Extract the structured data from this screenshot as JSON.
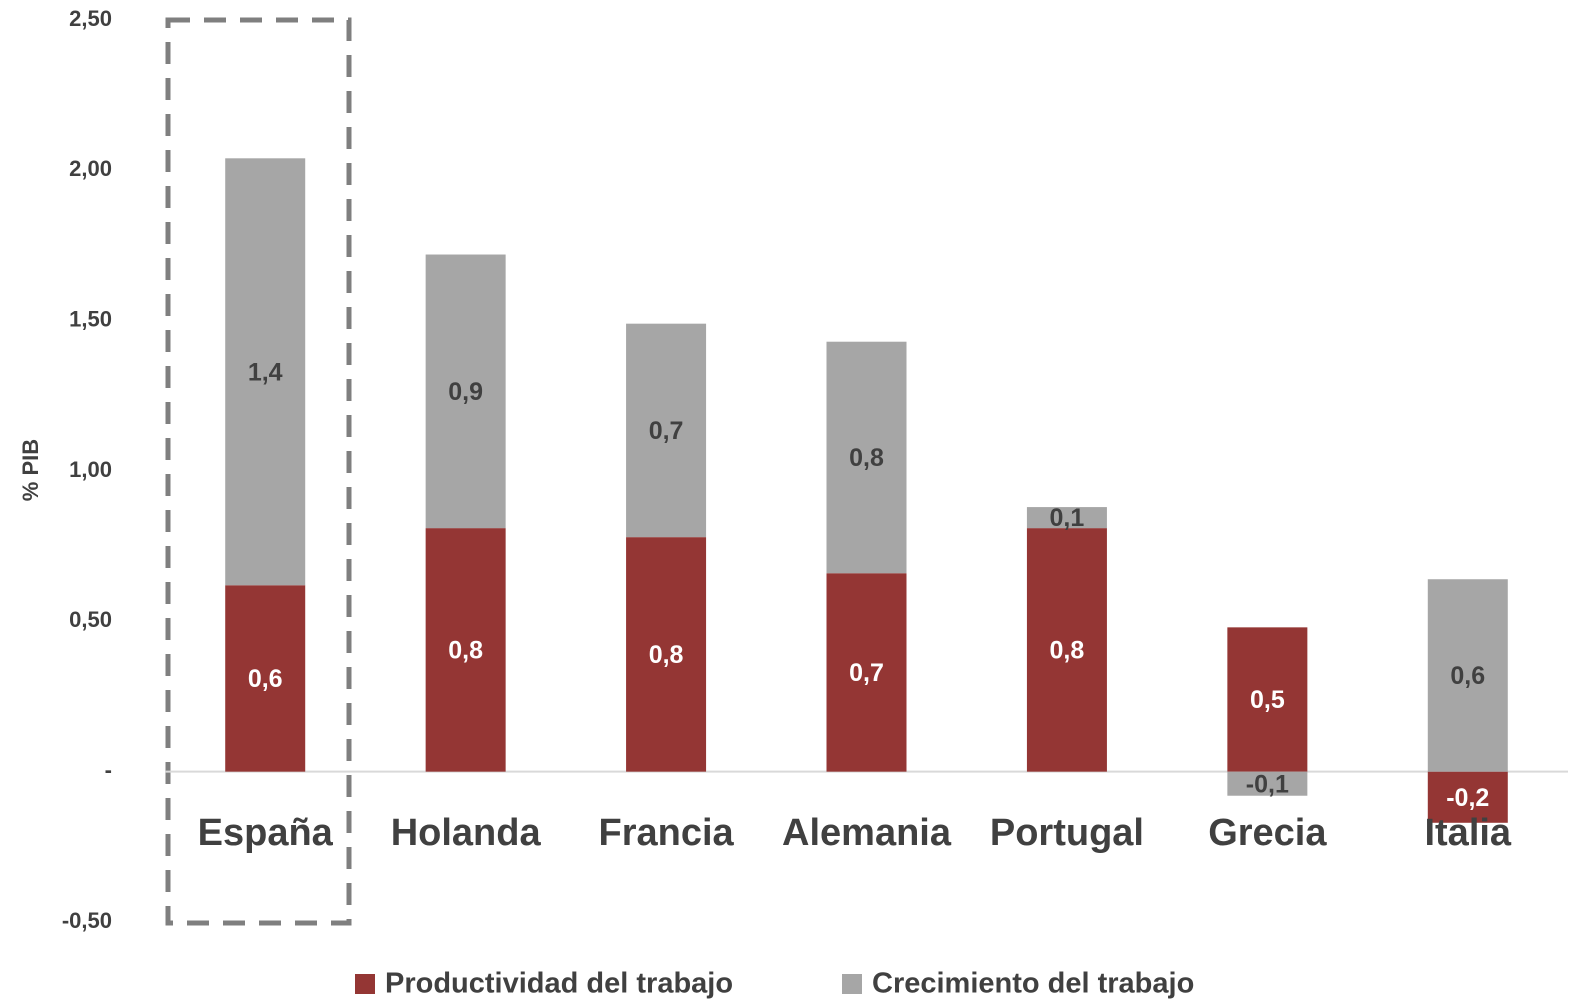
{
  "chart_data": {
    "type": "stacked_bar",
    "y_axis_label": "% PIB",
    "categories": [
      "España",
      "Holanda",
      "Francia",
      "Alemania",
      "Portugal",
      "Grecia",
      "Italia"
    ],
    "series": [
      {
        "name": "Productividad del trabajo",
        "color": "#943634",
        "values": [
          0.62,
          0.81,
          0.78,
          0.66,
          0.81,
          0.48,
          -0.17
        ],
        "value_labels": [
          "0,6",
          "0,8",
          "0,8",
          "0,7",
          "0,8",
          "0,5",
          "-0,2"
        ]
      },
      {
        "name": "Crecimiento del trabajo",
        "color": "#a6a6a6",
        "values": [
          1.42,
          0.91,
          0.71,
          0.77,
          0.07,
          -0.08,
          0.64
        ],
        "value_labels": [
          "1,4",
          "0,9",
          "0,7",
          "0,8",
          "0,1",
          "-0,1",
          "0,6"
        ]
      }
    ],
    "ylim": [
      -0.5,
      2.5
    ],
    "yticks": [
      {
        "value": -0.5,
        "label": "-0,50"
      },
      {
        "value": 0,
        "label": "-"
      },
      {
        "value": 0.5,
        "label": "0,50"
      },
      {
        "value": 1,
        "label": "1,00"
      },
      {
        "value": 1.5,
        "label": "1,50"
      },
      {
        "value": 2,
        "label": "2,00"
      },
      {
        "value": 2.5,
        "label": "2,50"
      }
    ],
    "legend": "bottom"
  }
}
